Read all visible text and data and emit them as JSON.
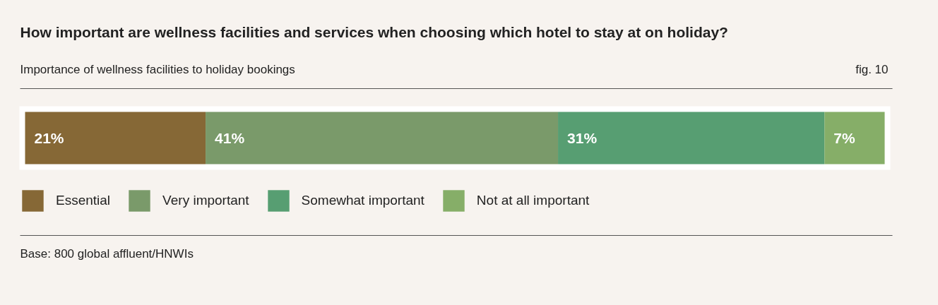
{
  "chart_data": {
    "type": "bar",
    "orientation": "horizontal",
    "stacked": true,
    "title": "How important are wellness facilities and services when choosing which hotel to stay at on holiday?",
    "subtitle": "Importance of wellness facilities to holiday bookings",
    "annotations": [
      "fig. 10",
      "Base: 800 global affluent/HNWIs"
    ],
    "categories": [
      null
    ],
    "series": [
      {
        "name": "Essential",
        "color": "#866836",
        "values": [
          21
        ],
        "value_labels": [
          "21%"
        ]
      },
      {
        "name": "Very important",
        "color": "#7a9a6a",
        "values": [
          41
        ],
        "value_labels": [
          "41%"
        ]
      },
      {
        "name": "Somewhat important",
        "color": "#579e72",
        "values": [
          31
        ],
        "value_labels": [
          "31%"
        ]
      },
      {
        "name": "Not at all important",
        "color": "#86ae68",
        "values": [
          7
        ],
        "value_labels": [
          "7%"
        ]
      }
    ],
    "legend": "bottom",
    "grid": false
  }
}
